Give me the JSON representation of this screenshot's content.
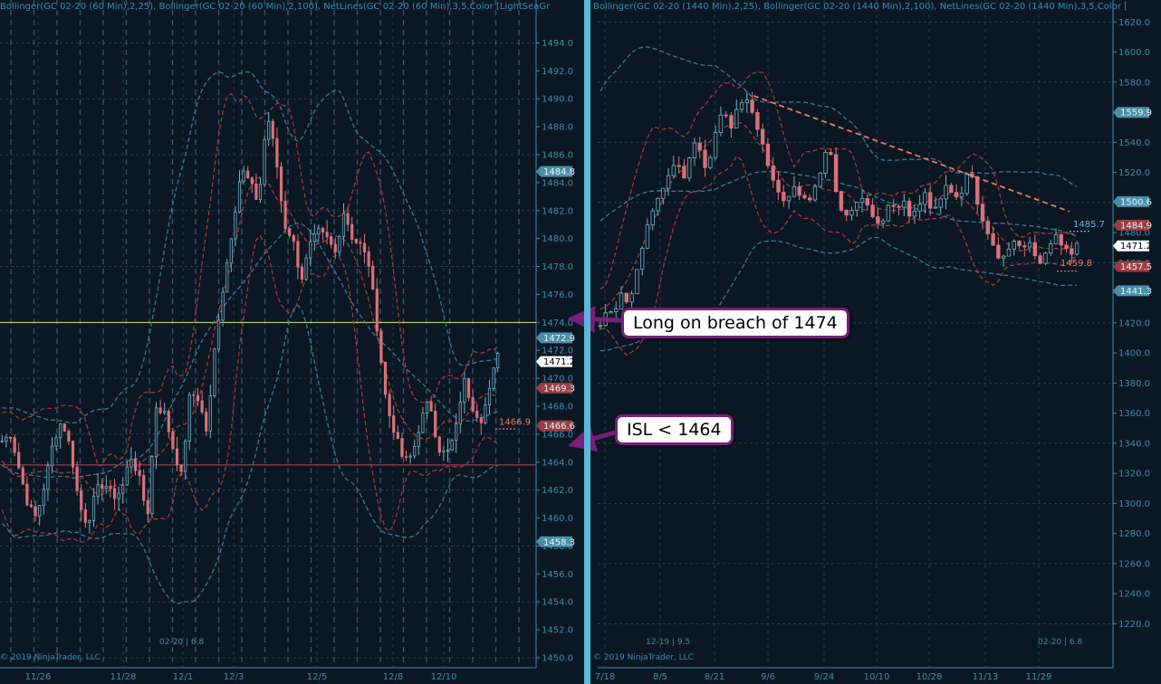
{
  "colors": {
    "background": "#0b1722",
    "divider": "#56b9de",
    "axis_text": "#3a8fb0",
    "candle_up": "#6fb3c8",
    "candle_down": "#d9717a",
    "bollinger_25": "#a23a3f",
    "bollinger_100": "#3a7b9a",
    "entry_line": "#d8e860",
    "stop_line": "#c0405a",
    "trendline": "#e9786e",
    "callout_border": "#7b1f7a"
  },
  "annotations": {
    "long_callout": "Long on breach of 1474",
    "isl_callout": "ISL < 1464"
  },
  "chart_data": [
    {
      "type": "candlestick",
      "panel": "left",
      "title": "Bollinger(GC 02-20 (60 Min),2,25), Bollinger(GC 02-20 (60 Min),2,100), NetLines(GC 02-20 (60 Min),3,5,Color [LightSeaGr",
      "instrument_label": "02-20 | 6.8",
      "copyright": "© 2019 NinjaTrader, LLC",
      "ylim": [
        1450,
        1495
      ],
      "y_ticks": [
        "1494.0",
        "1492.0",
        "1490.0",
        "1488.0",
        "1486.0",
        "1484.0",
        "1482.0",
        "1480.0",
        "1478.0",
        "1476.0",
        "1474.0",
        "1472.0",
        "1470.0",
        "1468.0",
        "1466.0",
        "1464.0",
        "1462.0",
        "1460.0",
        "1458.0",
        "1456.0",
        "1454.0",
        "1452.0",
        "1450.0"
      ],
      "x_ticks": [
        "11/26",
        "11/28",
        "12/1",
        "12/3",
        "12/5",
        "12/8",
        "12/10"
      ],
      "horizontal_lines": [
        {
          "name": "entry",
          "value": 1474.0,
          "color": "#d8e860"
        },
        {
          "name": "stop",
          "value": 1463.8,
          "color": "#c0405a"
        }
      ],
      "price_tags": [
        {
          "text": "1484.8",
          "value": 1484.8,
          "color": "#4a8fa8"
        },
        {
          "text": "1472.9",
          "value": 1472.9,
          "color": "#4a8fa8"
        },
        {
          "text": "1471.2",
          "value": 1471.2,
          "color": "#ffffff"
        },
        {
          "text": "1469.3",
          "value": 1469.3,
          "color": "#9a3d44"
        },
        {
          "text": "1466.6",
          "value": 1466.6,
          "color": "#9a3d44"
        },
        {
          "text": "1458.3",
          "value": 1458.3,
          "color": "#4a8fa8"
        }
      ],
      "floating_labels": [
        {
          "text": "1466.9",
          "value": 1466.9,
          "color": "#e9786e"
        }
      ],
      "close_path": [
        1465.5,
        1466,
        1463.5,
        1461,
        1460,
        1462.5,
        1465.5,
        1467,
        1465,
        1461,
        1459.5,
        1462,
        1462.5,
        1461.5,
        1462,
        1464.5,
        1463,
        1460,
        1468,
        1467.5,
        1465,
        1463,
        1469,
        1468.5,
        1466,
        1473,
        1477,
        1481,
        1485,
        1484,
        1482.5,
        1489,
        1486,
        1481,
        1480,
        1477,
        1479.5,
        1480.5,
        1480,
        1479,
        1482,
        1480,
        1479.5,
        1478,
        1473,
        1468,
        1466,
        1464,
        1464.5,
        1467,
        1468.5,
        1465,
        1464.5,
        1466,
        1470,
        1468,
        1467,
        1469,
        1472
      ]
    },
    {
      "type": "candlestick",
      "panel": "right",
      "title": "Bollinger(GC 02-20 (1440 Min),2,25), Bollinger(GC 02-20 (1440 Min),2,100), NetLines(GC 02-20 (1440 Min),3,5,Color [",
      "instrument_label": "02-20 | 6.8",
      "date_label": "12-19 | 9.5",
      "copyright": "© 2019 NinjaTrader, LLC",
      "ylim": [
        1210,
        1625
      ],
      "y_ticks": [
        "1620.0",
        "1600.0",
        "1580.0",
        "1560.0",
        "1540.0",
        "1520.0",
        "1500.0",
        "1480.0",
        "1460.0",
        "1440.0",
        "1420.0",
        "1400.0",
        "1380.0",
        "1360.0",
        "1340.0",
        "1320.0",
        "1300.0",
        "1280.0",
        "1260.0",
        "1240.0",
        "1220.0"
      ],
      "x_ticks": [
        "7/18",
        "8/5",
        "8/21",
        "9/6",
        "9/24",
        "10/10",
        "10/28",
        "11/13",
        "11/29"
      ],
      "trendline": {
        "from": {
          "x": "9/3",
          "y": 1571
        },
        "to": {
          "x": "12/5",
          "y": 1494
        },
        "color": "#e9786e"
      },
      "price_tags": [
        {
          "text": "1559.9",
          "value": 1559.9,
          "color": "#4a8fa8"
        },
        {
          "text": "1500.6",
          "value": 1500.6,
          "color": "#4a8fa8"
        },
        {
          "text": "1484.9",
          "value": 1484.9,
          "color": "#9a3d44"
        },
        {
          "text": "1471.2",
          "value": 1471.2,
          "color": "#ffffff"
        },
        {
          "text": "1457.5",
          "value": 1457.5,
          "color": "#9a3d44"
        },
        {
          "text": "1441.3",
          "value": 1441.3,
          "color": "#4a8fa8"
        }
      ],
      "floating_labels": [
        {
          "text": "1485.7",
          "value": 1485.7,
          "color": "#56b9de"
        },
        {
          "text": "1459.8",
          "value": 1459.8,
          "color": "#e9786e"
        }
      ],
      "close_path": [
        1420,
        1430,
        1425,
        1440,
        1430,
        1450,
        1470,
        1490,
        1500,
        1510,
        1520,
        1530,
        1515,
        1530,
        1545,
        1520,
        1530,
        1555,
        1560,
        1550,
        1565,
        1570,
        1560,
        1545,
        1530,
        1515,
        1505,
        1500,
        1510,
        1505,
        1500,
        1510,
        1520,
        1545,
        1510,
        1495,
        1490,
        1500,
        1505,
        1495,
        1485,
        1490,
        1500,
        1495,
        1500,
        1490,
        1495,
        1505,
        1495,
        1500,
        1510,
        1505,
        1500,
        1520,
        1515,
        1490,
        1480,
        1470,
        1460,
        1470,
        1475,
        1470,
        1475,
        1465,
        1460,
        1470,
        1480,
        1470,
        1465,
        1472
      ]
    }
  ]
}
